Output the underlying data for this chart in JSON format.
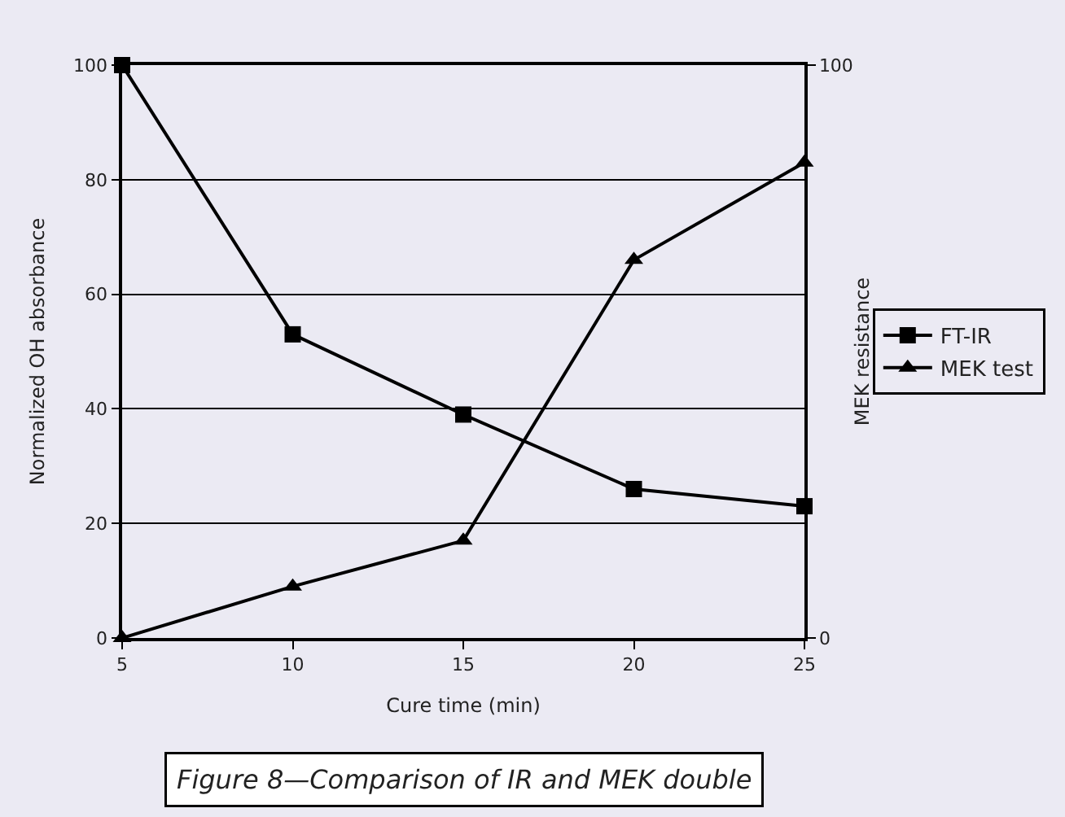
{
  "chart_data": {
    "type": "line",
    "xlabel": "Cure time (min)",
    "ylabel": "Normalized OH absorbance",
    "y2label": "MEK resistance",
    "x": [
      5,
      10,
      15,
      20,
      25
    ],
    "series": [
      {
        "name": "FT-IR",
        "color": "#000000",
        "marker": "square",
        "values": [
          100,
          53,
          39,
          26,
          23
        ]
      },
      {
        "name": "MEK test",
        "color": "#000000",
        "marker": "triangle",
        "axis": "y2",
        "values": [
          0,
          9,
          17,
          66,
          83
        ]
      }
    ],
    "xlim": [
      5,
      25
    ],
    "xticks": [
      5,
      10,
      15,
      20,
      25
    ],
    "ylim": [
      0,
      100
    ],
    "yticks": [
      0,
      20,
      40,
      60,
      80,
      100
    ],
    "y2lim": [
      0,
      100
    ],
    "y2ticks": [
      0,
      100
    ],
    "grid": "y",
    "legend": "right",
    "line_style": "solid",
    "annotations": [
      "Figure 8—Comparison of IR and MEK double"
    ]
  }
}
